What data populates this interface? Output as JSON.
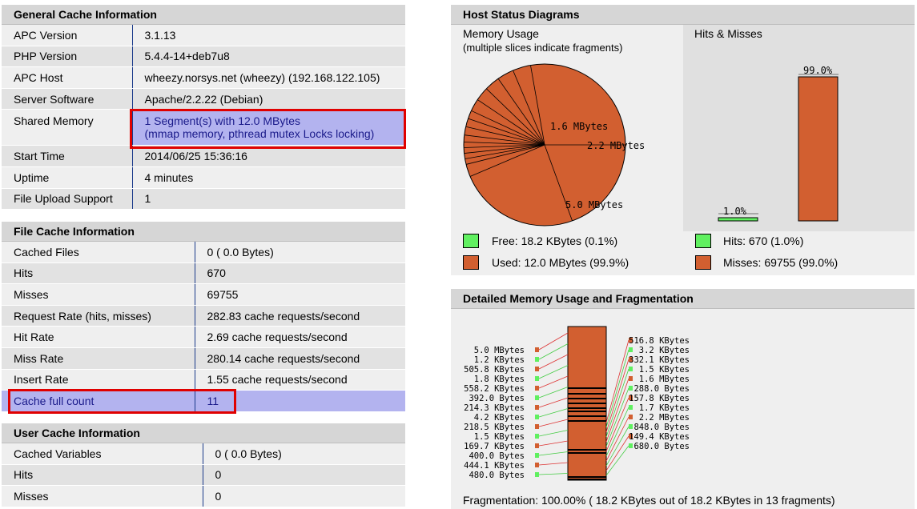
{
  "general": {
    "title": "General Cache Information",
    "rows": [
      {
        "k": "APC Version",
        "v": "3.1.13"
      },
      {
        "k": "PHP Version",
        "v": "5.4.4-14+deb7u8"
      },
      {
        "k": "APC Host",
        "v": "wheezy.norsys.net (wheezy) (192.168.122.105)"
      },
      {
        "k": "Server Software",
        "v": "Apache/2.2.22 (Debian)"
      },
      {
        "k": "Shared Memory",
        "v": "1 Segment(s) with 12.0 MBytes",
        "v2": "(mmap memory, pthread mutex Locks locking)"
      },
      {
        "k": "Start Time",
        "v": "2014/06/25 15:36:16"
      },
      {
        "k": "Uptime",
        "v": "4 minutes"
      },
      {
        "k": "File Upload Support",
        "v": "1"
      }
    ]
  },
  "file": {
    "title": "File Cache Information",
    "rows": [
      {
        "k": "Cached Files",
        "v": "0 ( 0.0 Bytes)"
      },
      {
        "k": "Hits",
        "v": "670"
      },
      {
        "k": "Misses",
        "v": "69755"
      },
      {
        "k": "Request Rate (hits, misses)",
        "v": "282.83 cache requests/second"
      },
      {
        "k": "Hit Rate",
        "v": "2.69 cache requests/second"
      },
      {
        "k": "Miss Rate",
        "v": "280.14 cache requests/second"
      },
      {
        "k": "Insert Rate",
        "v": "1.55 cache requests/second"
      },
      {
        "k": "Cache full count",
        "v": "11"
      }
    ]
  },
  "user": {
    "title": "User Cache Information",
    "rows": [
      {
        "k": "Cached Variables",
        "v": "0 ( 0.0 Bytes)"
      },
      {
        "k": "Hits",
        "v": "0"
      },
      {
        "k": "Misses",
        "v": "0"
      }
    ]
  },
  "host": {
    "title": "Host Status Diagrams",
    "mem_title": "Memory Usage",
    "mem_sub": "(multiple slices indicate fragments)",
    "hits_title": "Hits & Misses",
    "pie_labels": [
      "1.6 MBytes",
      "2.2 MBytes",
      "5.0 MBytes"
    ],
    "bar_labels": [
      "1.0%",
      "99.0%"
    ],
    "legend_free": "Free: 18.2 KBytes (0.1%)",
    "legend_used": "Used: 12.0 MBytes (99.9%)",
    "legend_hits": "Hits: 670 (1.0%)",
    "legend_misses": "Misses: 69755 (99.0%)"
  },
  "detail": {
    "title": "Detailed Memory Usage and Fragmentation",
    "left_labels": [
      "5.0 MBytes",
      "1.2 KBytes",
      "505.8 KBytes",
      "1.8 KBytes",
      "558.2 KBytes",
      "392.0 Bytes",
      "214.3 KBytes",
      "4.2 KBytes",
      "218.5 KBytes",
      "1.5 KBytes",
      "169.7 KBytes",
      "400.0 Bytes",
      "444.1 KBytes",
      "480.0 Bytes"
    ],
    "right_labels": [
      "516.8 KBytes",
      "3.2 KBytes",
      "332.1 KBytes",
      "1.5 KBytes",
      "1.6 MBytes",
      "288.0 Bytes",
      "157.8 KBytes",
      "1.7 KBytes",
      "2.2 MBytes",
      "848.0 Bytes",
      "149.4 KBytes",
      "680.0 Bytes"
    ],
    "fragmentation": "Fragmentation: 100.00% ( 18.2 KBytes out of 18.2 KBytes in 13 fragments)"
  },
  "colors": {
    "used": "#d25f30",
    "free": "#60f060",
    "highlight": "#b3b3ef",
    "header": "#d6d6d6",
    "redbox": "#e00000"
  }
}
